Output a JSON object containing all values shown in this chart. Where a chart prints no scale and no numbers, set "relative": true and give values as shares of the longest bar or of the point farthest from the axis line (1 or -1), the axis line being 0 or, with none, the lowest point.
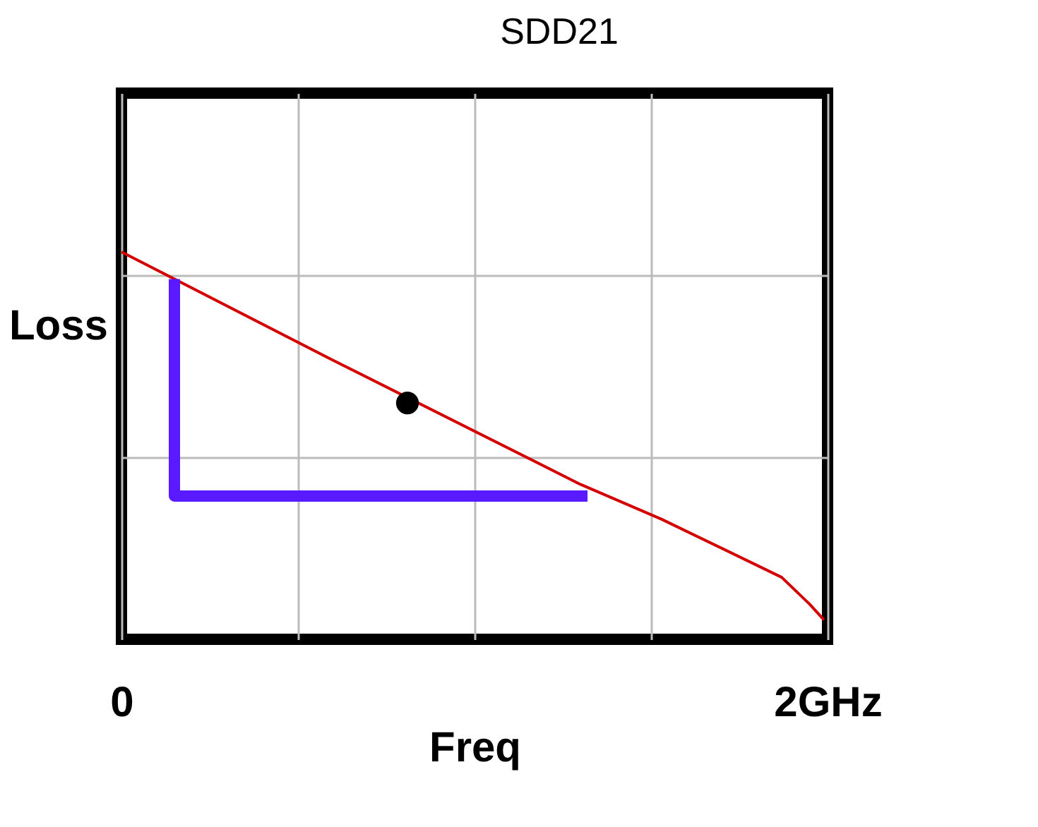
{
  "chart_data": {
    "type": "line",
    "title": "SDD21",
    "xlabel": "Freq",
    "ylabel": "Loss",
    "relative": true,
    "grid": true,
    "xlim": [
      0,
      2
    ],
    "xticks": [
      {
        "value": 0,
        "label": "0"
      },
      {
        "value": 0.5,
        "label": null
      },
      {
        "value": 1,
        "label": null
      },
      {
        "value": 1.5,
        "label": null
      },
      {
        "value": 2,
        "label": "2GHz"
      }
    ],
    "series": [
      {
        "color": "#d40000",
        "x": [
          0,
          0.6,
          1.3,
          1.53,
          1.87,
          1.95,
          1.99
        ],
        "values": [
          1.0,
          0.72,
          0.4,
          0.31,
          0.16,
          0.09,
          0.05
        ]
      },
      {
        "type": "line",
        "color": "#5a1aff",
        "x": [
          0.15,
          0.15,
          1.32
        ],
        "values": [
          0.93,
          0.37,
          0.37
        ]
      },
      {
        "type": "scatter",
        "color": "#000000",
        "x": [
          0.81
        ],
        "values": [
          0.61
        ]
      }
    ]
  }
}
